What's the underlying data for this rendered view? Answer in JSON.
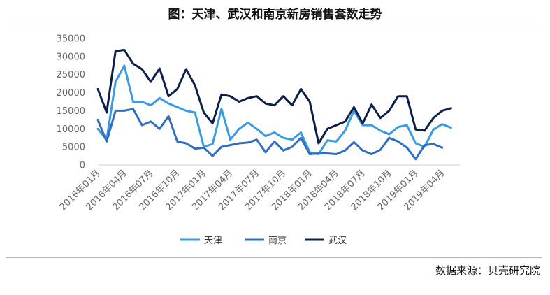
{
  "title": "图：天津、武汉和南京新房销售套数走势",
  "source": "数据来源：贝壳研究院",
  "chart_data": {
    "type": "line",
    "ylim": [
      0,
      35000
    ],
    "yticks": [
      0,
      5000,
      10000,
      15000,
      20000,
      25000,
      30000,
      35000
    ],
    "x": [
      "2016年01月",
      "2016年02月",
      "2016年03月",
      "2016年04月",
      "2016年05月",
      "2016年06月",
      "2016年07月",
      "2016年08月",
      "2016年09月",
      "2016年10月",
      "2016年11月",
      "2016年12月",
      "2017年01月",
      "2017年02月",
      "2017年03月",
      "2017年04月",
      "2017年05月",
      "2017年06月",
      "2017年07月",
      "2017年08月",
      "2017年09月",
      "2017年10月",
      "2017年11月",
      "2017年12月",
      "2018年01月",
      "2018年02月",
      "2018年03月",
      "2018年04月",
      "2018年05月",
      "2018年06月",
      "2018年07月",
      "2018年08月",
      "2018年09月",
      "2018年10月",
      "2018年11月",
      "2018年12月",
      "2019年01月",
      "2019年02月",
      "2019年03月",
      "2019年04月",
      "2019年05月",
      "2019年06月"
    ],
    "xtick_labels": [
      "2016年01月",
      "2016年04月",
      "2016年07月",
      "2016年10月",
      "2017年01月",
      "2017年04月",
      "2017年07月",
      "2017年10月",
      "2018年01月",
      "2018年04月",
      "2018年07月",
      "2018年10月",
      "2019年01月",
      "2019年04月"
    ],
    "legend_position": "bottom",
    "grid": false,
    "series": [
      {
        "name": "天津",
        "color": "#3b9ae1",
        "values": [
          10000,
          7000,
          23000,
          27500,
          17500,
          17500,
          16500,
          18500,
          17000,
          16000,
          15000,
          14500,
          5000,
          5800,
          15500,
          7000,
          10000,
          11700,
          10000,
          8000,
          9000,
          7500,
          7000,
          9000,
          3500,
          3000,
          6800,
          6500,
          9500,
          15000,
          11000,
          11000,
          9500,
          8500,
          10500,
          11000,
          6000,
          5000,
          9800,
          11300,
          10300,
          null
        ]
      },
      {
        "name": "南京",
        "color": "#2f6fc0",
        "values": [
          12500,
          6500,
          15000,
          15000,
          15500,
          11000,
          12000,
          10000,
          13500,
          6500,
          6000,
          4500,
          4800,
          2500,
          5000,
          5500,
          6000,
          6200,
          7000,
          3500,
          6500,
          4000,
          5000,
          7500,
          3000,
          3200,
          3200,
          3000,
          4000,
          6300,
          4000,
          3000,
          4200,
          7500,
          6500,
          4800,
          1600,
          5500,
          5800,
          4800,
          null,
          null
        ]
      },
      {
        "name": "武汉",
        "color": "#0c1e4a",
        "values": [
          21000,
          14500,
          31500,
          31800,
          28000,
          26500,
          23000,
          26700,
          19000,
          21000,
          26500,
          22000,
          14500,
          11500,
          19500,
          19000,
          17500,
          18500,
          19000,
          17000,
          16500,
          19000,
          16500,
          21000,
          17500,
          6000,
          10000,
          11000,
          12000,
          16000,
          11500,
          16700,
          13000,
          15000,
          19000,
          19000,
          9800,
          9500,
          13000,
          15000,
          15700,
          null
        ]
      }
    ]
  }
}
